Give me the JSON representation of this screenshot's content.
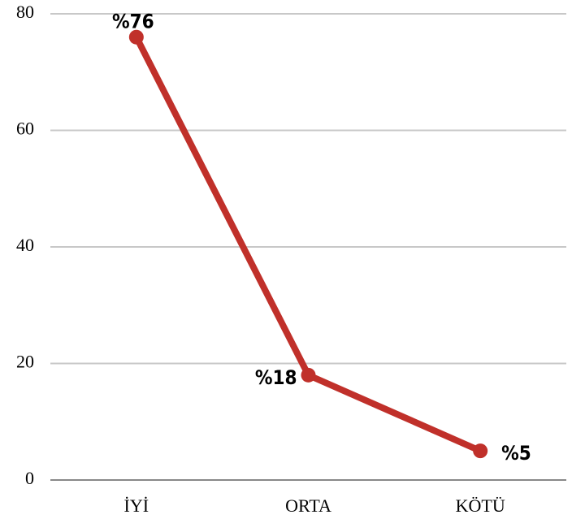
{
  "chart_data": {
    "type": "line",
    "categories": [
      "İYİ",
      "ORTA",
      "KÖTÜ"
    ],
    "values": [
      76,
      18,
      5
    ],
    "value_labels": [
      "%76",
      "%18",
      "%5"
    ],
    "color": "#c0302a",
    "ylim": [
      0,
      80
    ],
    "yticks": [
      0,
      20,
      40,
      60,
      80
    ],
    "grid": true
  }
}
